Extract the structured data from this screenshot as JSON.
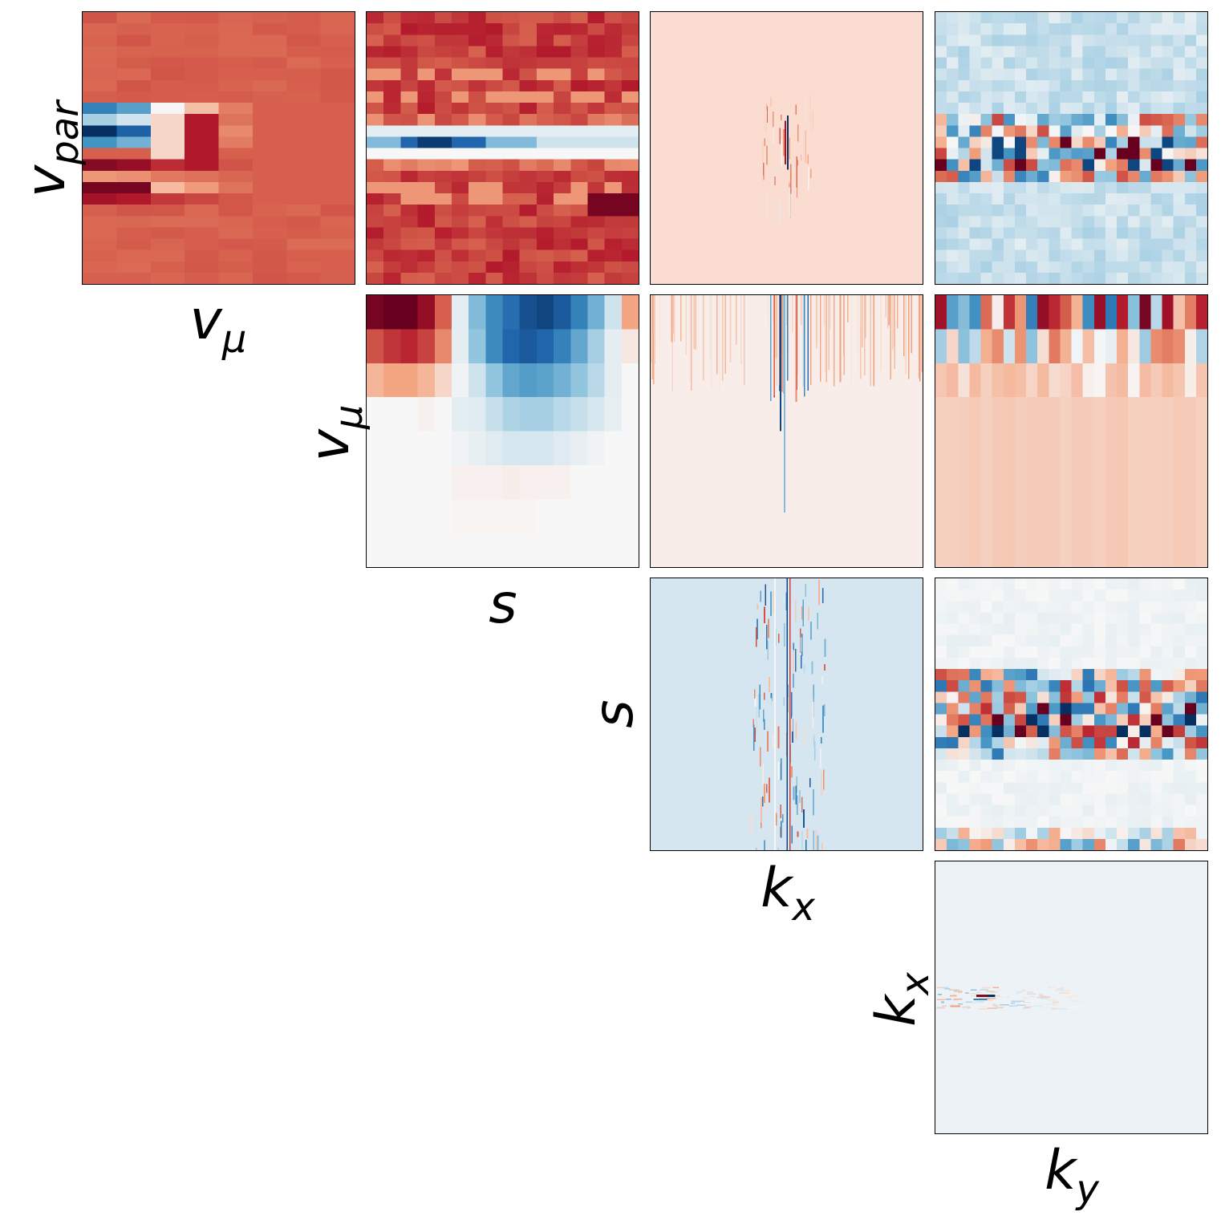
{
  "chart_data": {
    "type": "heatmap",
    "layout": "upper-triangular corner plot",
    "colormap": "RdBu",
    "variables": [
      "v_par",
      "v_mu",
      "s",
      "k_x",
      "k_y"
    ],
    "row_labels": [
      {
        "base": "v",
        "sub": "par"
      },
      {
        "base": "v",
        "sub": "μ"
      },
      {
        "base": "s",
        "sub": ""
      },
      {
        "base": "k",
        "sub": "x"
      }
    ],
    "col_labels": [
      {
        "base": "v",
        "sub": "μ"
      },
      {
        "base": "s",
        "sub": ""
      },
      {
        "base": "k",
        "sub": "x"
      },
      {
        "base": "k",
        "sub": "y"
      }
    ],
    "panels": [
      {
        "row": 0,
        "col": 0,
        "pair": [
          "v_par",
          "v_mu"
        ],
        "grid": [
          8,
          24
        ],
        "background": "#d6604d",
        "pattern": "stripes-left"
      },
      {
        "row": 0,
        "col": 1,
        "pair": [
          "v_par",
          "s"
        ],
        "grid": [
          16,
          24
        ],
        "background": "#c43c3c",
        "pattern": "bands"
      },
      {
        "row": 0,
        "col": 2,
        "pair": [
          "v_par",
          "k_x"
        ],
        "grid": [
          100,
          100
        ],
        "background": "#fbdcd0",
        "pattern": "center-spike"
      },
      {
        "row": 0,
        "col": 3,
        "pair": [
          "v_par",
          "k_y"
        ],
        "grid": [
          24,
          24
        ],
        "background": "#e3ecf4",
        "pattern": "noisy-band"
      },
      {
        "row": 1,
        "col": 1,
        "pair": [
          "v_mu",
          "s"
        ],
        "grid": [
          16,
          8
        ],
        "background": "#f8f3f1",
        "pattern": "block"
      },
      {
        "row": 1,
        "col": 2,
        "pair": [
          "v_mu",
          "k_x"
        ],
        "grid": [
          100,
          8
        ],
        "background": "#f8ede8",
        "pattern": "top-stripes"
      },
      {
        "row": 1,
        "col": 3,
        "pair": [
          "v_mu",
          "k_y"
        ],
        "grid": [
          24,
          8
        ],
        "background": "#f8e5dc",
        "pattern": "top-bars"
      },
      {
        "row": 2,
        "col": 2,
        "pair": [
          "s",
          "k_x"
        ],
        "grid": [
          100,
          16
        ],
        "background": "#d6e6f0",
        "pattern": "vertical-lines"
      },
      {
        "row": 2,
        "col": 3,
        "pair": [
          "s",
          "k_y"
        ],
        "grid": [
          24,
          24
        ],
        "background": "#f5f5f5",
        "pattern": "checker-band"
      },
      {
        "row": 3,
        "col": 3,
        "pair": [
          "k_x",
          "k_y"
        ],
        "grid": [
          100,
          100
        ],
        "background": "#edf2f6",
        "pattern": "left-streak"
      }
    ]
  }
}
